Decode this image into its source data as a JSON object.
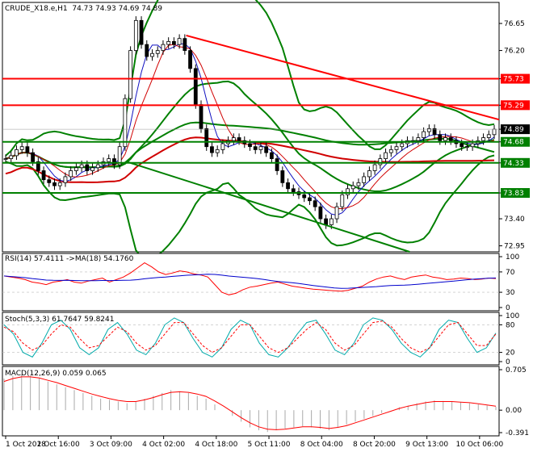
{
  "main": {
    "symbol_label": "CRUDE_X18.e,H1",
    "ohlc": "74.73 74.93 74.69 74.89"
  },
  "chart_data": {
    "type": "candlestick",
    "symbol": "CRUDE_X18.e",
    "timeframe": "H1",
    "y_ticks": [
      "76.65",
      "76.20",
      "75.73",
      "75.29",
      "74.89",
      "74.68",
      "74.33",
      "73.83",
      "73.40",
      "72.95"
    ],
    "ylim": [
      72.85,
      77.0
    ],
    "x_ticks": [
      "1 Oct 2018",
      "2 Oct 16:00",
      "3 Oct 09:00",
      "4 Oct 02:00",
      "4 Oct 18:00",
      "5 Oct 11:00",
      "8 Oct 04:00",
      "8 Oct 20:00",
      "9 Oct 13:00",
      "10 Oct 06:00"
    ],
    "current_price": 74.89,
    "horizontal_levels": [
      {
        "value": 75.73,
        "color": "#ff0000",
        "label": "75.73"
      },
      {
        "value": 75.29,
        "color": "#ff0000",
        "label": "75.29"
      },
      {
        "value": 74.68,
        "color": "#008000",
        "label": "74.68"
      },
      {
        "value": 74.33,
        "color": "#008000",
        "label": "74.33"
      },
      {
        "value": 73.83,
        "color": "#008000",
        "label": "73.83"
      }
    ],
    "trendlines": [
      {
        "from": [
          0.37,
          76.45
        ],
        "to": [
          1.0,
          75.05
        ],
        "color": "#ff0000"
      },
      {
        "from": [
          0.25,
          74.35
        ],
        "to": [
          0.82,
          72.85
        ],
        "color": "#008000"
      }
    ],
    "price_series": [
      74.4,
      74.45,
      74.55,
      74.6,
      74.5,
      74.35,
      74.2,
      74.05,
      74.0,
      73.95,
      74.0,
      74.1,
      74.2,
      74.25,
      74.3,
      74.2,
      74.25,
      74.3,
      74.35,
      74.4,
      74.3,
      74.6,
      75.4,
      76.2,
      76.7,
      76.3,
      76.1,
      76.15,
      76.2,
      76.3,
      76.35,
      76.3,
      76.4,
      76.2,
      75.9,
      75.3,
      74.9,
      74.6,
      74.5,
      74.55,
      74.65,
      74.7,
      74.75,
      74.7,
      74.65,
      74.6,
      74.55,
      74.6,
      74.5,
      74.4,
      74.2,
      74.0,
      73.9,
      73.85,
      73.8,
      73.75,
      73.7,
      73.6,
      73.4,
      73.3,
      73.4,
      73.6,
      73.8,
      73.9,
      73.95,
      74.0,
      74.1,
      74.2,
      74.3,
      74.4,
      74.5,
      74.55,
      74.6,
      74.65,
      74.7,
      74.7,
      74.75,
      74.85,
      74.9,
      74.8,
      74.7,
      74.75,
      74.7,
      74.65,
      74.6,
      74.6,
      74.65,
      74.7,
      74.75,
      74.8,
      74.89
    ],
    "rsi": {
      "label": "RSI(14) 57.4111  ->MA(18) 54.1760",
      "ticks": [
        "100",
        "70",
        "30",
        "0"
      ],
      "series": [
        62,
        60,
        58,
        55,
        50,
        48,
        45,
        50,
        52,
        55,
        50,
        48,
        52,
        55,
        58,
        50,
        55,
        60,
        68,
        78,
        88,
        80,
        70,
        65,
        68,
        72,
        70,
        66,
        64,
        60,
        45,
        30,
        25,
        28,
        35,
        40,
        42,
        45,
        48,
        50,
        46,
        42,
        40,
        38,
        36,
        35,
        34,
        33,
        32,
        34,
        38,
        42,
        50,
        56,
        60,
        62,
        58,
        55,
        60,
        62,
        64,
        60,
        58,
        55,
        56,
        58,
        57,
        55,
        56,
        58,
        57
      ]
    },
    "stoch": {
      "label": "Stoch(5,3,3) 61.7647 59.8241",
      "ticks": [
        "100",
        "80",
        "20",
        "0"
      ],
      "k_series": [
        80,
        60,
        20,
        10,
        40,
        80,
        90,
        70,
        30,
        15,
        30,
        70,
        85,
        60,
        25,
        15,
        40,
        80,
        95,
        85,
        50,
        20,
        10,
        30,
        70,
        90,
        80,
        40,
        15,
        10,
        30,
        60,
        85,
        90,
        60,
        25,
        15,
        40,
        80,
        95,
        90,
        70,
        40,
        20,
        10,
        30,
        70,
        90,
        85,
        50,
        20,
        30,
        62
      ],
      "d_series": [
        75,
        65,
        40,
        25,
        35,
        60,
        80,
        75,
        50,
        30,
        35,
        55,
        75,
        65,
        40,
        25,
        35,
        60,
        85,
        85,
        60,
        35,
        20,
        30,
        55,
        80,
        80,
        55,
        30,
        20,
        30,
        50,
        70,
        85,
        70,
        40,
        25,
        35,
        60,
        85,
        88,
        75,
        50,
        30,
        20,
        30,
        55,
        80,
        85,
        60,
        35,
        35,
        60
      ]
    },
    "macd": {
      "label": "MACD(12,26,9) 0.059 0.065",
      "ticks": [
        "0.705",
        "0.00",
        "-0.391"
      ],
      "histogram": [
        0.55,
        0.6,
        0.62,
        0.6,
        0.55,
        0.5,
        0.45,
        0.4,
        0.35,
        0.3,
        0.25,
        0.2,
        0.18,
        0.15,
        0.12,
        0.15,
        0.2,
        0.25,
        0.3,
        0.35,
        0.33,
        0.3,
        0.25,
        0.2,
        0.1,
        0.0,
        -0.1,
        -0.2,
        -0.3,
        -0.35,
        -0.38,
        -0.35,
        -0.32,
        -0.3,
        -0.28,
        -0.3,
        -0.32,
        -0.35,
        -0.3,
        -0.25,
        -0.2,
        -0.15,
        -0.1,
        -0.05,
        0.0,
        0.05,
        0.08,
        0.12,
        0.15,
        0.17,
        0.16,
        0.15,
        0.14,
        0.12,
        0.1,
        0.08,
        0.06
      ],
      "signal": [
        0.5,
        0.55,
        0.58,
        0.58,
        0.56,
        0.52,
        0.48,
        0.43,
        0.38,
        0.33,
        0.28,
        0.24,
        0.2,
        0.17,
        0.15,
        0.15,
        0.18,
        0.22,
        0.27,
        0.31,
        0.32,
        0.31,
        0.28,
        0.24,
        0.16,
        0.07,
        -0.03,
        -0.13,
        -0.22,
        -0.29,
        -0.33,
        -0.34,
        -0.33,
        -0.31,
        -0.29,
        -0.29,
        -0.3,
        -0.32,
        -0.3,
        -0.27,
        -0.22,
        -0.17,
        -0.12,
        -0.07,
        -0.02,
        0.03,
        0.07,
        0.1,
        0.13,
        0.15,
        0.15,
        0.15,
        0.14,
        0.13,
        0.11,
        0.09,
        0.07
      ]
    }
  }
}
